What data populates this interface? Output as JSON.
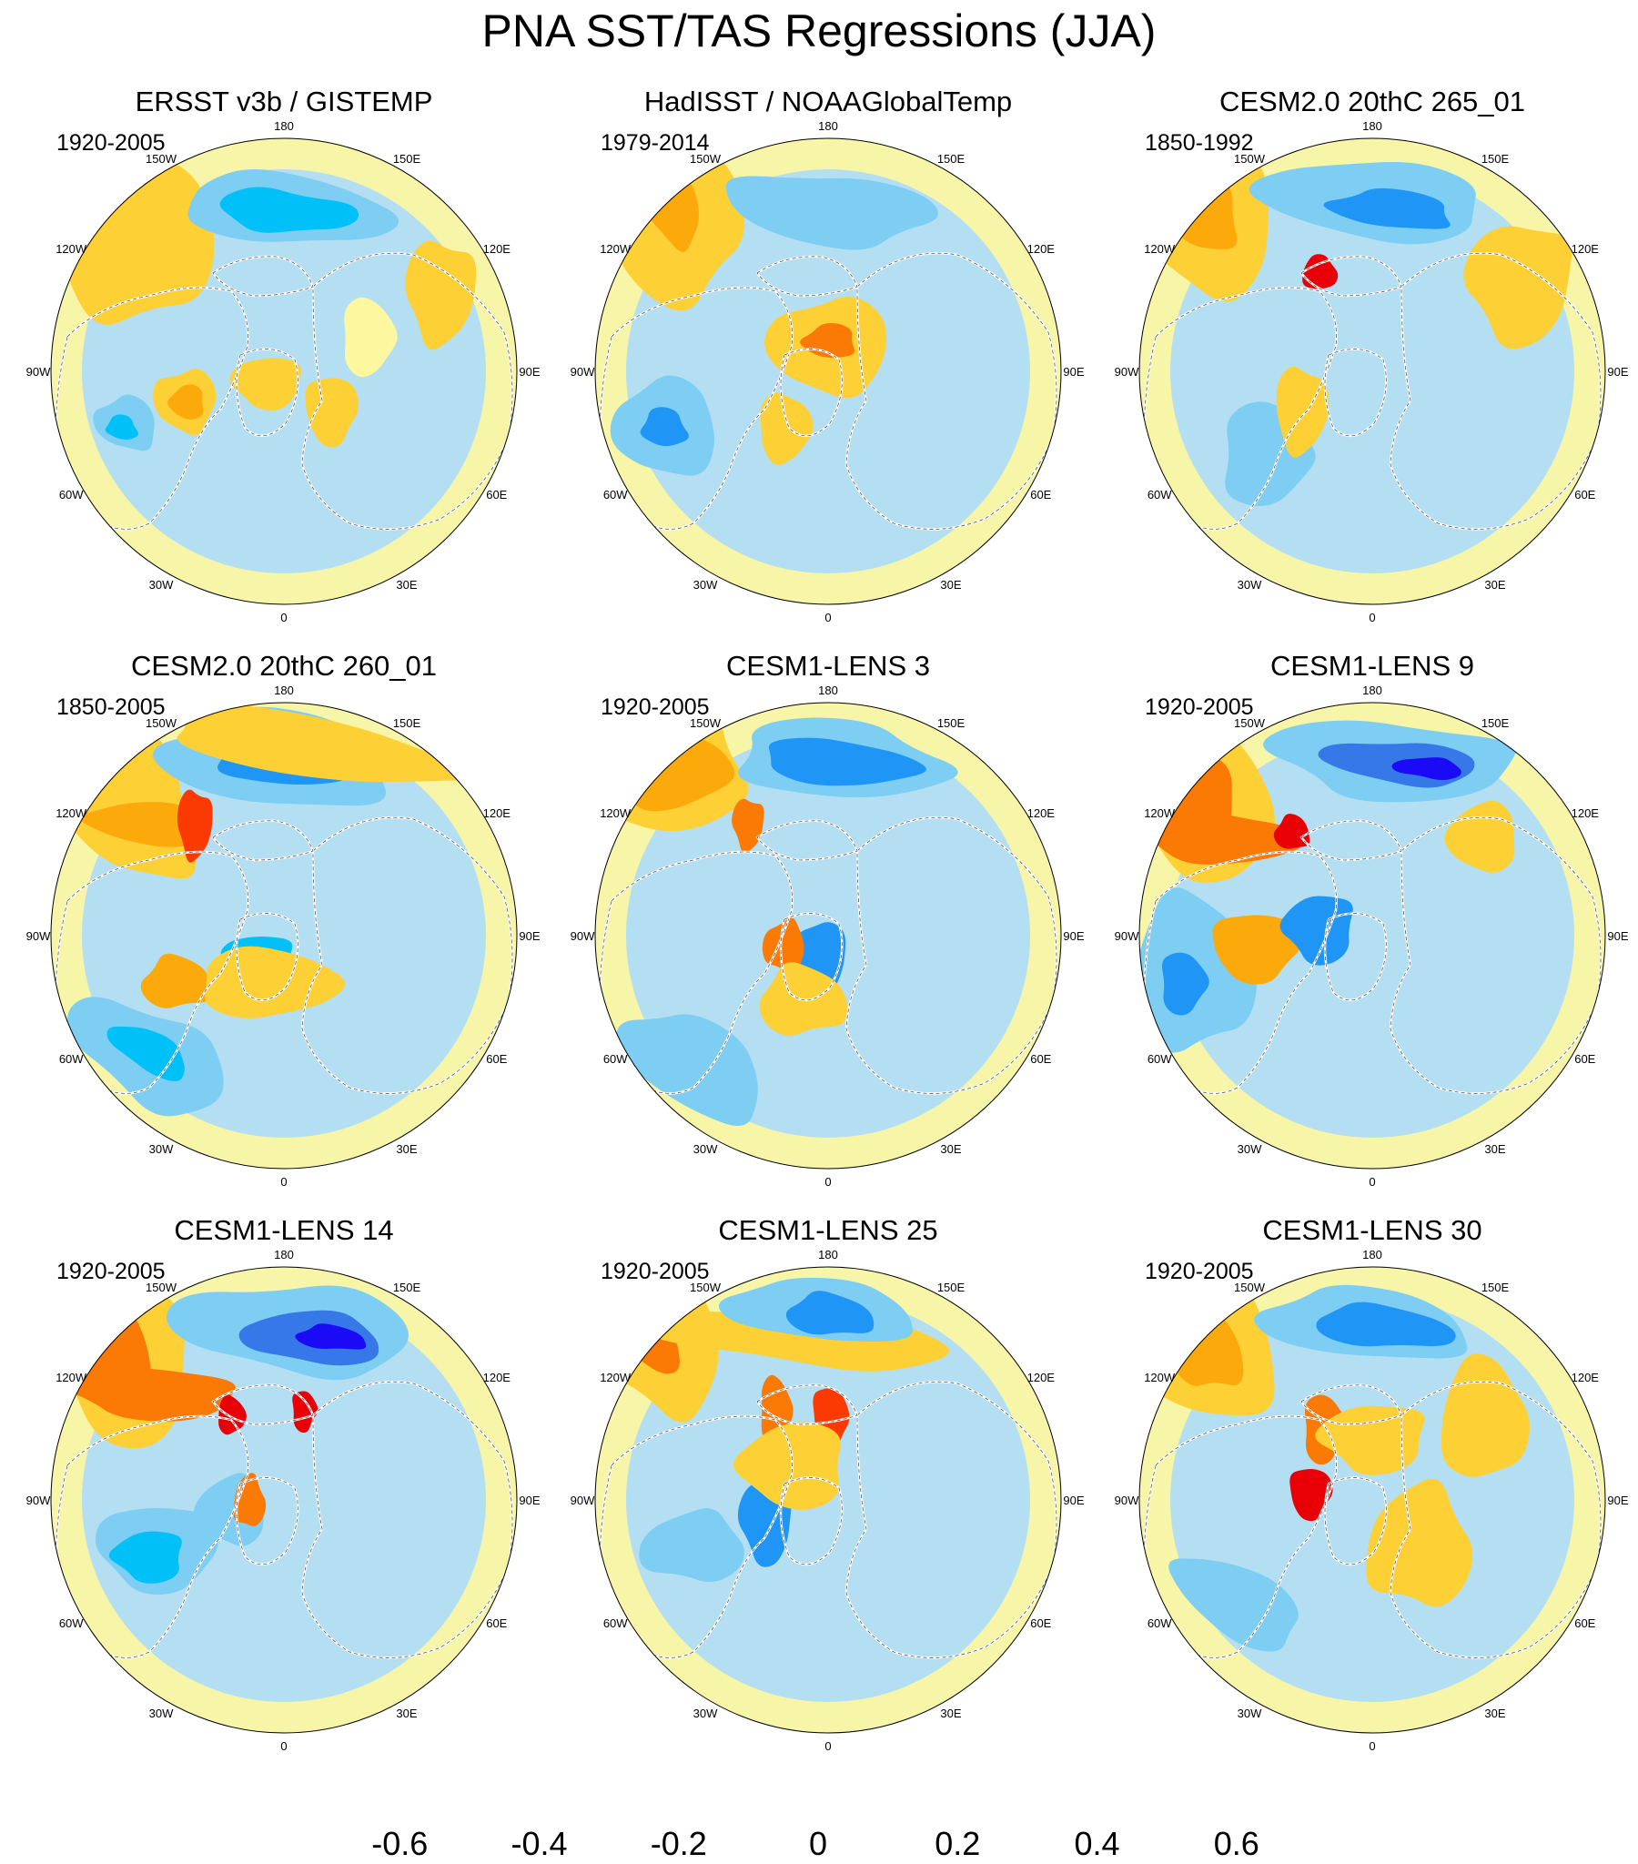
{
  "figure": {
    "title": "PNA SST/TAS Regressions (JJA)"
  },
  "longitude_labels": [
    "180",
    "150E",
    "120E",
    "90E",
    "60E",
    "30E",
    "0",
    "30W",
    "60W",
    "90W",
    "120W",
    "150W"
  ],
  "panels": [
    {
      "title": "ERSST v3b / GISTEMP",
      "period": "1920-2005"
    },
    {
      "title": "HadISST / NOAAGlobalTemp",
      "period": "1979-2014"
    },
    {
      "title": "CESM2.0 20thC 265_01",
      "period": "1850-1992"
    },
    {
      "title": "CESM2.0 20thC 260_01",
      "period": "1850-2005"
    },
    {
      "title": "CESM1-LENS 3",
      "period": "1920-2005"
    },
    {
      "title": "CESM1-LENS 9",
      "period": "1920-2005"
    },
    {
      "title": "CESM1-LENS 14",
      "period": "1920-2005"
    },
    {
      "title": "CESM1-LENS 25",
      "period": "1920-2005"
    },
    {
      "title": "CESM1-LENS 30",
      "period": "1920-2005"
    }
  ],
  "colorbar": {
    "colors": [
      "#8f2be0",
      "#1a0af5",
      "#2d4ee8",
      "#3778e8",
      "#1f96f5",
      "#00c0f8",
      "#7ecdf2",
      "#b4dff3",
      "#fdf7a0",
      "#fdd035",
      "#fca90c",
      "#fb7a06",
      "#fb3a03",
      "#e80006",
      "#cc1e20",
      "#fbb5b5"
    ],
    "tick_labels": [
      "-0.6",
      "-0.4",
      "-0.2",
      "0",
      "0.2",
      "0.4",
      "0.6"
    ]
  },
  "colors": {
    "land_outline": "#ffffff",
    "coast_outline": "#555555",
    "map_edge": "#000000"
  }
}
